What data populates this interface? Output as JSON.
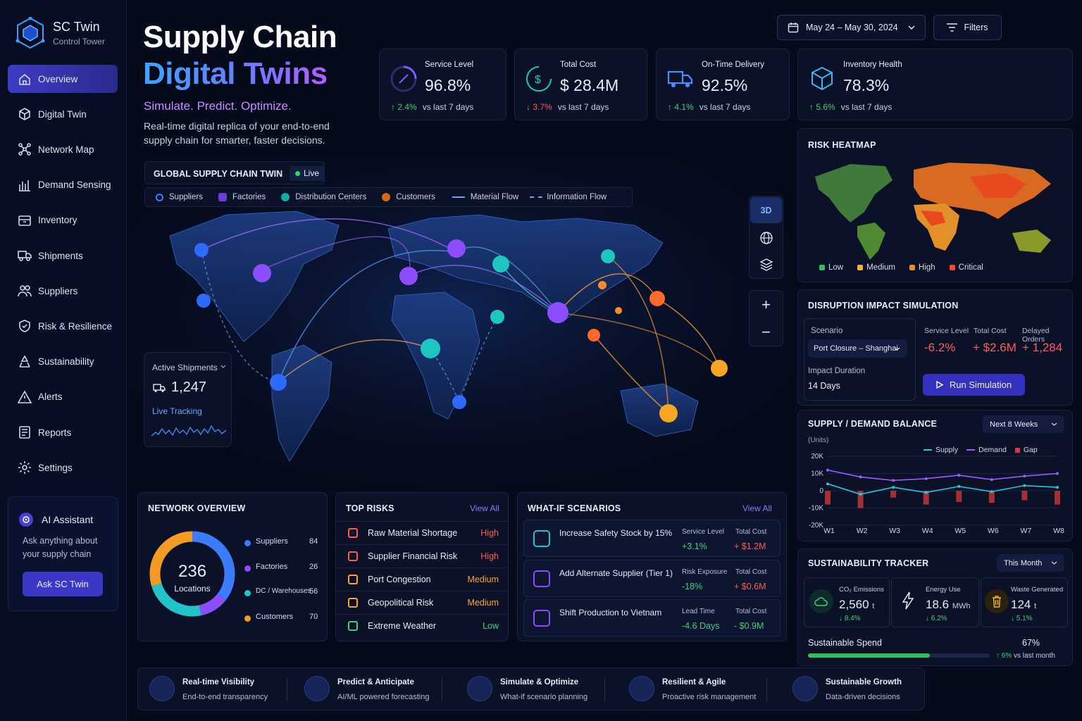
{
  "brand": {
    "name": "SC Twin",
    "subtitle": "Control Tower"
  },
  "nav": [
    {
      "label": "Overview",
      "icon": "home-icon"
    },
    {
      "label": "Digital Twin",
      "icon": "cube-icon"
    },
    {
      "label": "Network Map",
      "icon": "network-icon"
    },
    {
      "label": "Demand Sensing",
      "icon": "bar-chart-icon"
    },
    {
      "label": "Inventory",
      "icon": "inventory-icon"
    },
    {
      "label": "Shipments",
      "icon": "truck-icon"
    },
    {
      "label": "Suppliers",
      "icon": "users-icon"
    },
    {
      "label": "Risk & Resilience",
      "icon": "shield-icon"
    },
    {
      "label": "Sustainability",
      "icon": "recycle-icon"
    },
    {
      "label": "Alerts",
      "icon": "alert-icon"
    },
    {
      "label": "Reports",
      "icon": "report-icon"
    },
    {
      "label": "Settings",
      "icon": "gear-icon"
    }
  ],
  "assistant": {
    "title": "AI Assistant",
    "text1": "Ask anything about",
    "text2": "your supply chain",
    "button": "Ask SC Twin"
  },
  "hero": {
    "line1": "Supply Chain",
    "line2": "Digital Twins",
    "tagline": "Simulate. Predict. Optimize.",
    "desc1": "Real-time digital replica of your end-to-end",
    "desc2": "supply chain for smarter, faster decisions."
  },
  "topbar": {
    "date_range": "May 24 – May 30, 2024",
    "filters": "Filters"
  },
  "kpis": [
    {
      "label": "Service Level",
      "value": "96.8%",
      "change": "2.4%",
      "dir": "up",
      "suffix": "vs last 7 days",
      "color": "#7b5cff"
    },
    {
      "label": "Total Cost",
      "value": "$ 28.4M",
      "change": "3.7%",
      "dir": "down",
      "suffix": "vs last 7 days",
      "color": "#21c7b8"
    },
    {
      "label": "On-Time Delivery",
      "value": "92.5%",
      "change": "4.1%",
      "dir": "up",
      "suffix": "vs last 7 days",
      "color": "#4a8dff"
    },
    {
      "label": "Inventory Health",
      "value": "78.3%",
      "change": "5.6%",
      "dir": "up",
      "suffix": "vs last 7 days",
      "color": "#37b6ff"
    }
  ],
  "twin": {
    "title": "GLOBAL SUPPLY CHAIN TWIN",
    "live": "Live",
    "legend": [
      "Suppliers",
      "Factories",
      "Distribution Centers",
      "Customers",
      "Material Flow",
      "Information Flow"
    ],
    "btn3d": "3D"
  },
  "shipments": {
    "label": "Active Shipments",
    "value": "1,247",
    "tracking": "Live Tracking"
  },
  "heatmap": {
    "title": "RISK HEATMAP",
    "legend": [
      {
        "label": "Low",
        "color": "#2fbf5b"
      },
      {
        "label": "Medium",
        "color": "#f2b230"
      },
      {
        "label": "High",
        "color": "#f28a1e"
      },
      {
        "label": "Critical",
        "color": "#ef4b3c"
      }
    ]
  },
  "disruption": {
    "title": "DISRUPTION IMPACT SIMULATION",
    "scenario_label": "Scenario",
    "scenario": "Port Closure – Shanghai",
    "duration_label": "Impact Duration",
    "duration": "14 Days",
    "metrics": [
      {
        "label": "Service Level",
        "value": "-6.2%"
      },
      {
        "label": "Total Cost",
        "value": "+ $2.6M"
      },
      {
        "label": "Delayed Orders",
        "value": "+ 1,284"
      }
    ],
    "button": "Run Simulation"
  },
  "balance": {
    "title": "SUPPLY / DEMAND BALANCE",
    "range": "Next 8 Weeks",
    "units": "(Units)",
    "legend": [
      "Supply",
      "Demand",
      "Gap"
    ]
  },
  "chart_data": {
    "type": "line",
    "ylabel": "(Units)",
    "yticks": [
      "20K",
      "10K",
      "0",
      "-10K",
      "-20K"
    ],
    "ylim": [
      -20000,
      20000
    ],
    "categories": [
      "W1",
      "W2",
      "W3",
      "W4",
      "W5",
      "W6",
      "W7",
      "W8"
    ],
    "series": [
      {
        "name": "Supply",
        "color": "#27c7d9",
        "values": [
          4000,
          -2000,
          2000,
          -1000,
          2500,
          -500,
          3000,
          2000
        ]
      },
      {
        "name": "Demand",
        "color": "#9b5cff",
        "values": [
          12000,
          8000,
          6000,
          7000,
          9000,
          6500,
          8500,
          10000
        ]
      },
      {
        "name": "Gap",
        "color": "#d83a3a",
        "values": [
          -8000,
          -10000,
          -4000,
          -8000,
          -6500,
          -7000,
          -5500,
          -8000
        ]
      }
    ]
  },
  "sustainability": {
    "title": "SUSTAINABILITY TRACKER",
    "range": "This Month",
    "items": [
      {
        "label": "CO₂ Emissions",
        "value": "2,560",
        "unit": "t",
        "change": "8.4%"
      },
      {
        "label": "Energy Use",
        "value": "18.6",
        "unit": "MWh",
        "change": "6.2%"
      },
      {
        "label": "Waste Generated",
        "value": "124",
        "unit": "t",
        "change": "5.1%"
      }
    ],
    "spend_label": "Sustainable Spend",
    "spend_value": "67%",
    "spend_fraction": 0.67,
    "spend_change": "6%",
    "spend_suffix": "vs last month"
  },
  "network": {
    "title": "NETWORK OVERVIEW",
    "total": "236",
    "total_label": "Locations",
    "items": [
      {
        "label": "Suppliers",
        "value": 84,
        "color": "#3b7bff"
      },
      {
        "label": "Factories",
        "value": 26,
        "color": "#8b4dff"
      },
      {
        "label": "DC / Warehouses",
        "value": 56,
        "color": "#22c3c9"
      },
      {
        "label": "Customers",
        "value": 70,
        "color": "#f39b22"
      }
    ]
  },
  "risks": {
    "title": "TOP RISKS",
    "viewall": "View All",
    "items": [
      {
        "label": "Raw Material Shortage",
        "level": "High"
      },
      {
        "label": "Supplier Financial Risk",
        "level": "High"
      },
      {
        "label": "Port Congestion",
        "level": "Medium"
      },
      {
        "label": "Geopolitical Risk",
        "level": "Medium"
      },
      {
        "label": "Extreme Weather",
        "level": "Low"
      }
    ]
  },
  "whatif": {
    "title": "WHAT-IF SCENARIOS",
    "viewall": "View All",
    "items": [
      {
        "label": "Increase Safety Stock by 15%",
        "m1": "Service Level",
        "v1": "+3.1%",
        "m2": "Total Cost",
        "v2": "+ $1.2M"
      },
      {
        "label": "Add Alternate Supplier (Tier 1)",
        "m1": "Risk Exposure",
        "v1": "-18%",
        "m2": "Total Cost",
        "v2": "+ $0.6M"
      },
      {
        "label": "Shift Production to Vietnam",
        "m1": "Lead Time",
        "v1": "-4.6 Days",
        "m2": "Total Cost",
        "v2": "- $0.9M"
      }
    ]
  },
  "features": [
    {
      "title": "Real-time Visibility",
      "sub": "End-to-end transparency"
    },
    {
      "title": "Predict & Anticipate",
      "sub": "AI/ML powered forecasting"
    },
    {
      "title": "Simulate & Optimize",
      "sub": "What-if scenario planning"
    },
    {
      "title": "Resilient & Agile",
      "sub": "Proactive risk management"
    },
    {
      "title": "Sustainable Growth",
      "sub": "Data-driven decisions"
    }
  ]
}
